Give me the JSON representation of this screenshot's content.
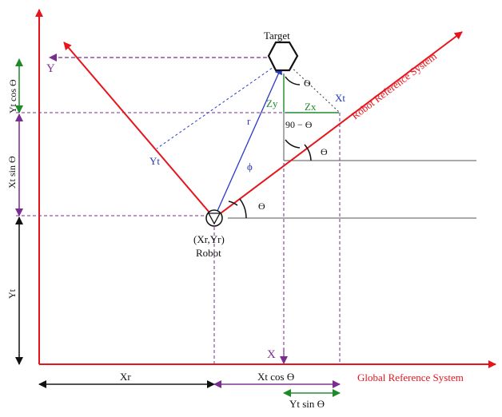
{
  "colors": {
    "red": "#e8141c",
    "purple": "#7a2d8f",
    "blue": "#2a38c8",
    "green": "#1f8a2a",
    "black": "#111111",
    "grey": "#555555"
  },
  "labels": {
    "target": "Target",
    "robot_coords": "(Xr,Yr)",
    "robot": "Robot",
    "global_y": "Y",
    "global_x": "X",
    "global_system": "Global Reference System",
    "robot_system": "Robot Reference System",
    "robot_y": "Yt",
    "robot_x": "Xt",
    "r": "r",
    "phi": "ϕ",
    "zy": "Zy",
    "zx": "Zx",
    "ninety_minus_theta": "90 − ϴ",
    "theta": "ϴ"
  },
  "dimensions": {
    "left_top": "Yt cos ϴ",
    "left_middle": "Xt sin ϴ",
    "left_bottom": "Yt",
    "bottom_left": "Xr",
    "bottom_middle": "Xt cos ϴ",
    "bottom_below": "Yt sin ϴ"
  }
}
